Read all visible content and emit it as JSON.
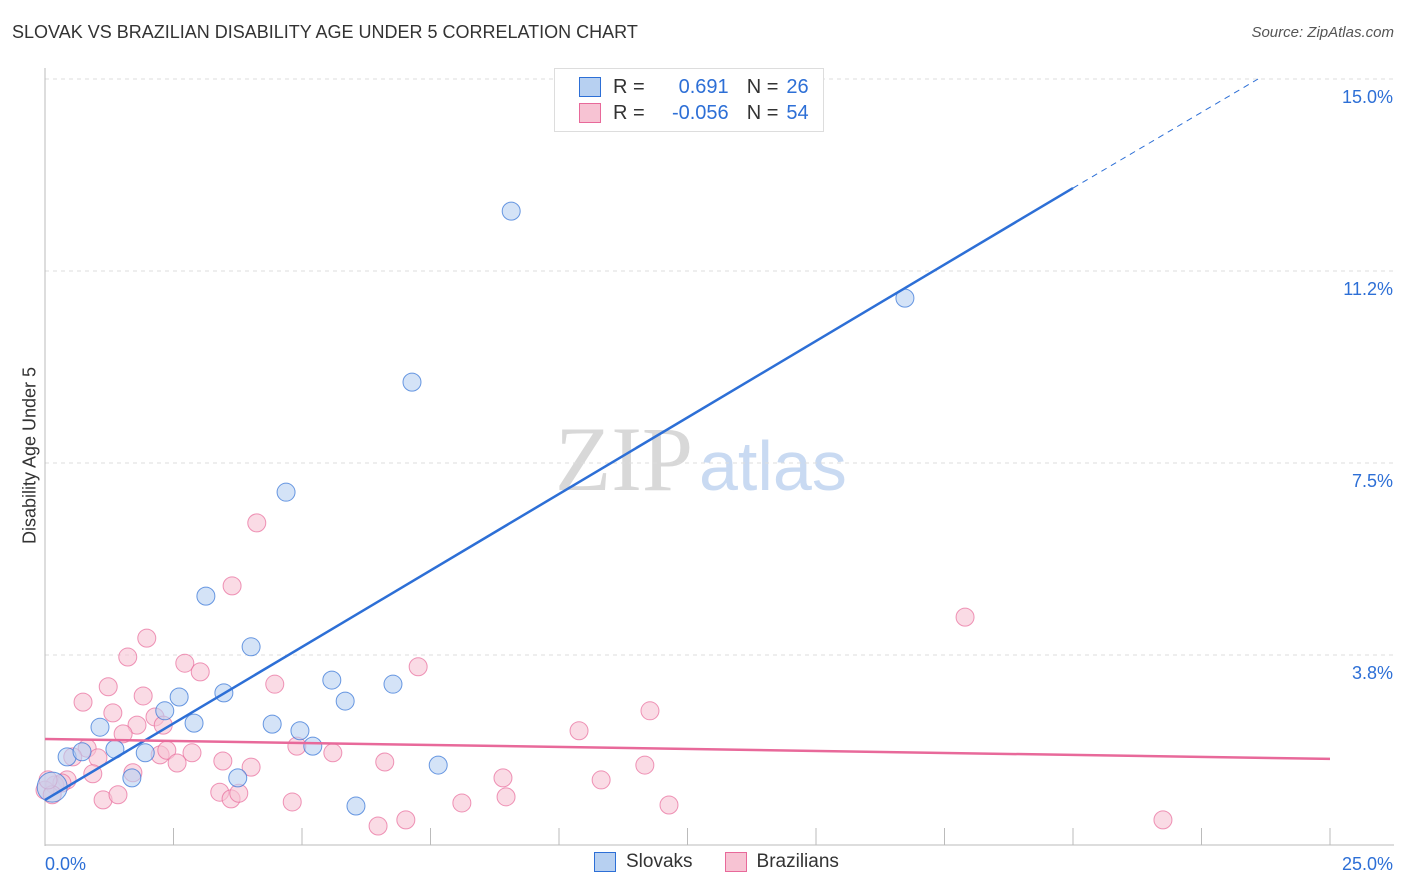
{
  "title": "SLOVAK VS BRAZILIAN DISABILITY AGE UNDER 5 CORRELATION CHART",
  "source": "Source: ZipAtlas.com",
  "legend": {
    "r_label": "R =",
    "n_label": "N =",
    "slovak_r": "0.691",
    "slovak_n": "26",
    "brazilian_r": "-0.056",
    "brazilian_n": "54"
  },
  "watermark": "ZIPatlas",
  "colors": {
    "slovak": "#2d6fd6",
    "slovak_fill": "#b7d0f1",
    "brazilian": "#e8699a",
    "brazilian_fill": "#f7c3d3"
  },
  "chart_data": {
    "type": "scatter",
    "title": "SLOVAK VS BRAZILIAN DISABILITY AGE UNDER 5 CORRELATION CHART",
    "xlabel": "",
    "ylabel": "Disability Age Under 5",
    "xlim": [
      0,
      25
    ],
    "ylim": [
      0,
      15
    ],
    "x_tick_labels": [
      "0.0%",
      "25.0%"
    ],
    "y_ticks": [
      {
        "v": 15,
        "label": "15.0%"
      },
      {
        "v": 11.25,
        "label": "11.2%"
      },
      {
        "v": 7.5,
        "label": "7.5%"
      },
      {
        "v": 3.75,
        "label": "3.8%"
      }
    ],
    "legend_placement": "bottom-center",
    "series": [
      {
        "name": "Slovaks",
        "points": [
          [
            0.14,
            1.17
          ],
          [
            0.43,
            1.76
          ],
          [
            0.72,
            1.86
          ],
          [
            1.07,
            2.34
          ],
          [
            1.36,
            1.91
          ],
          [
            1.69,
            1.35
          ],
          [
            1.95,
            1.84
          ],
          [
            2.33,
            2.66
          ],
          [
            2.61,
            2.93
          ],
          [
            2.9,
            2.42
          ],
          [
            3.13,
            4.9
          ],
          [
            3.48,
            3.01
          ],
          [
            3.75,
            1.35
          ],
          [
            4.01,
            3.91
          ],
          [
            4.42,
            2.4
          ],
          [
            4.69,
            6.93
          ],
          [
            4.96,
            2.27
          ],
          [
            5.21,
            1.97
          ],
          [
            5.58,
            3.26
          ],
          [
            5.84,
            2.85
          ],
          [
            6.05,
            0.8
          ],
          [
            6.77,
            3.18
          ],
          [
            7.14,
            9.08
          ],
          [
            7.65,
            1.6
          ],
          [
            9.07,
            12.42
          ],
          [
            16.73,
            10.72
          ]
        ],
        "trend": {
          "x0": 0,
          "y0": 0.92,
          "x1": 20,
          "y1": 12.87,
          "dash_to_x": 23.6,
          "dash_to_y": 15.0
        }
      },
      {
        "name": "Brazilians",
        "points": [
          [
            1.98,
            4.08
          ],
          [
            1.61,
            3.71
          ],
          [
            2.72,
            3.59
          ],
          [
            3.02,
            3.42
          ],
          [
            1.23,
            3.13
          ],
          [
            0.74,
            2.83
          ],
          [
            1.91,
            2.95
          ],
          [
            1.32,
            2.62
          ],
          [
            2.14,
            2.54
          ],
          [
            1.79,
            2.38
          ],
          [
            2.3,
            2.38
          ],
          [
            1.52,
            2.21
          ],
          [
            4.47,
            3.18
          ],
          [
            7.26,
            3.52
          ],
          [
            0.82,
            1.93
          ],
          [
            0.54,
            1.76
          ],
          [
            1.03,
            1.74
          ],
          [
            2.24,
            1.8
          ],
          [
            2.37,
            1.89
          ],
          [
            2.86,
            1.84
          ],
          [
            2.57,
            1.64
          ],
          [
            0.93,
            1.43
          ],
          [
            1.71,
            1.45
          ],
          [
            0.43,
            1.31
          ],
          [
            0.19,
            1.21
          ],
          [
            0.33,
            1.25
          ],
          [
            1.13,
            0.92
          ],
          [
            1.42,
            1.02
          ],
          [
            3.46,
            1.68
          ],
          [
            4.01,
            1.56
          ],
          [
            3.4,
            1.07
          ],
          [
            3.62,
            0.94
          ],
          [
            3.77,
            1.05
          ],
          [
            4.81,
            0.88
          ],
          [
            4.9,
            1.97
          ],
          [
            5.6,
            1.84
          ],
          [
            6.61,
            1.66
          ],
          [
            6.48,
            0.41
          ],
          [
            7.02,
            0.53
          ],
          [
            8.11,
            0.86
          ],
          [
            4.12,
            6.33
          ],
          [
            3.64,
            5.1
          ],
          [
            10.39,
            2.27
          ],
          [
            11.77,
            2.66
          ],
          [
            10.82,
            1.31
          ],
          [
            11.67,
            1.6
          ],
          [
            12.14,
            0.82
          ],
          [
            8.91,
            1.35
          ],
          [
            8.97,
            0.98
          ],
          [
            17.9,
            4.49
          ],
          [
            21.75,
            0.53
          ],
          [
            0.0,
            1.11
          ],
          [
            0.14,
            1.02
          ],
          [
            0.06,
            1.31
          ]
        ],
        "trend": {
          "x0": 0,
          "y0": 2.11,
          "x1": 25,
          "y1": 1.72
        }
      }
    ]
  }
}
